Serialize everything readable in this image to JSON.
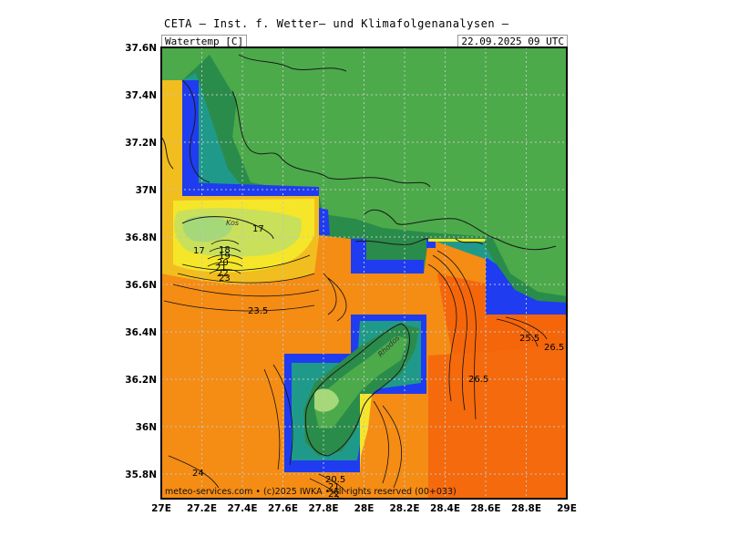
{
  "header": {
    "title": "CETA – Inst. f. Wetter– und Klimafolgenanalysen –",
    "parameter": "Watertemp [C]",
    "datetime": "22.09.2025 09 UTC"
  },
  "map": {
    "lon_range": [
      27.0,
      29.0
    ],
    "lat_range": [
      35.7,
      37.6
    ],
    "x_ticks": [
      "27E",
      "27.2E",
      "27.4E",
      "27.6E",
      "27.8E",
      "28E",
      "28.2E",
      "28.4E",
      "28.6E",
      "28.8E",
      "29E"
    ],
    "y_ticks": [
      "37.6N",
      "37.4N",
      "37.2N",
      "37N",
      "36.8N",
      "36.6N",
      "36.4N",
      "36.2N",
      "36N",
      "35.8N"
    ],
    "gridlines": true,
    "contour_labels": [
      "17",
      "17",
      "18",
      "19",
      "20",
      "21",
      "22",
      "23",
      "23.5",
      "25.5",
      "26.5",
      "26.5",
      "24",
      "20.5",
      "21",
      "22"
    ],
    "place_labels": [
      "Kos",
      "Rhodos"
    ],
    "colors": {
      "land": "#4caa4a",
      "land_dark": "#2a8c4a",
      "teal": "#1f9a8a",
      "blue": "#1f3cf0",
      "cold_light": "#a5d878",
      "yellow": "#f5e62a",
      "gold": "#f2bd1e",
      "orange": "#f58c14",
      "dark_orange": "#f5660a"
    }
  },
  "footer": {
    "copyright": "meteo-services.com • (c)2025 IWKA • All rights reserved (00+033)"
  }
}
